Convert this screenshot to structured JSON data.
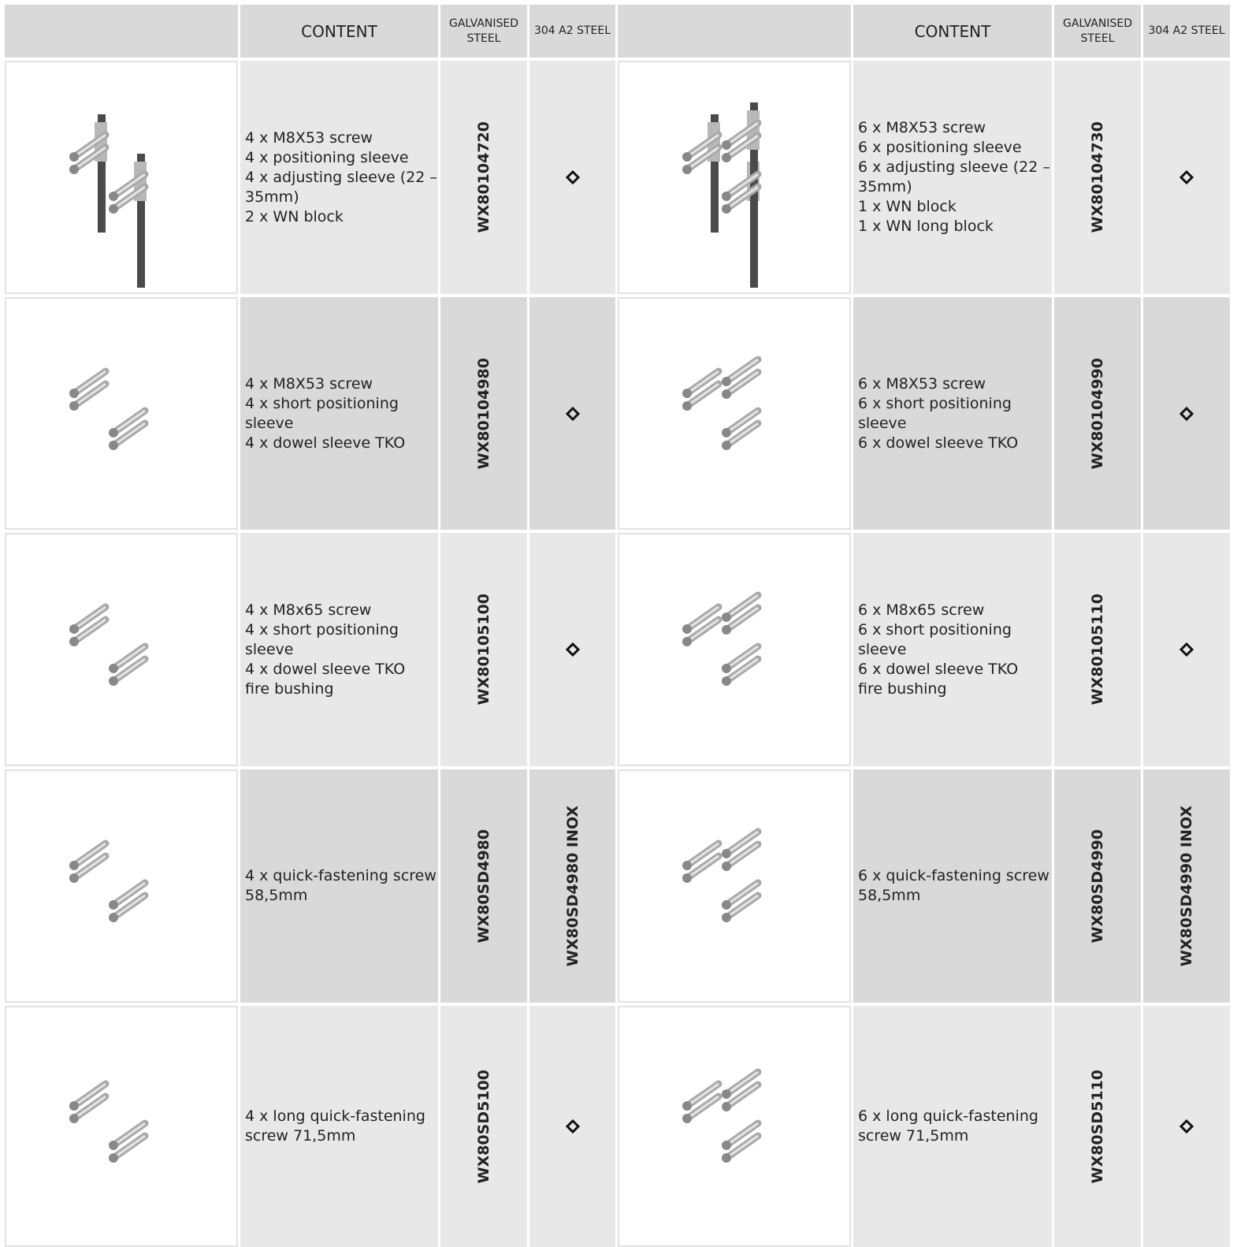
{
  "table": {
    "header": [
      "CONTENT",
      "GALVANISED STEEL",
      "304 A2 STEEL"
    ],
    "rows": [
      {
        "left": {
          "content": [
            "4 x M8X53 screw",
            "4 x positioning sleeve",
            "4 x adjusting sleeve (22 – 35mm)",
            "2 x WN block"
          ],
          "galvanised": "WX80104720"
        },
        "right": {
          "content": [
            "6 x M8X53 screw",
            "6 x positioning sleeve",
            "6 x adjusting sleeve (22 – 35mm)",
            "1 x WN block",
            "1 x WN long block"
          ],
          "galvanised": "WX80104730"
        }
      },
      {
        "left": {
          "content": [
            "4 x M8X53 screw",
            "4 x short positioning sleeve",
            "4 x dowel sleeve TKO"
          ],
          "galvanised": "WX80104980"
        },
        "right": {
          "content": [
            "6 x M8X53 screw",
            "6 x short positioning sleeve",
            "6 x dowel sleeve TKO"
          ],
          "galvanised": "WX80104990"
        }
      },
      {
        "left": {
          "content": [
            "4 x M8x65 screw",
            "4 x short positioning sleeve",
            "4 x dowel sleeve TKO",
            "fire bushing"
          ],
          "galvanised": "WX80105100"
        },
        "right": {
          "content": [
            "6 x M8x65 screw",
            "6 x short positioning sleeve",
            "6 x dowel sleeve TKO",
            "fire bushing"
          ],
          "galvanised": "WX80105110"
        }
      },
      {
        "left": {
          "content": [
            "4 x quick-fastening screw 58,5mm"
          ],
          "galvanised": "WX80SD4980",
          "a2": "WX80SD4980 INOX"
        },
        "right": {
          "content": [
            "6 x quick-fastening screw 58,5mm"
          ],
          "galvanised": "WX80SD4990",
          "a2": "WX80SD4990 INOX"
        }
      },
      {
        "left": {
          "content": [
            "4 x long quick-fastening screw 71,5mm"
          ],
          "galvanised": "WX80SD5100"
        },
        "right": {
          "content": [
            "6 x long quick-fastening screw 71,5mm"
          ],
          "galvanised": "WX80SD5110"
        }
      }
    ]
  }
}
